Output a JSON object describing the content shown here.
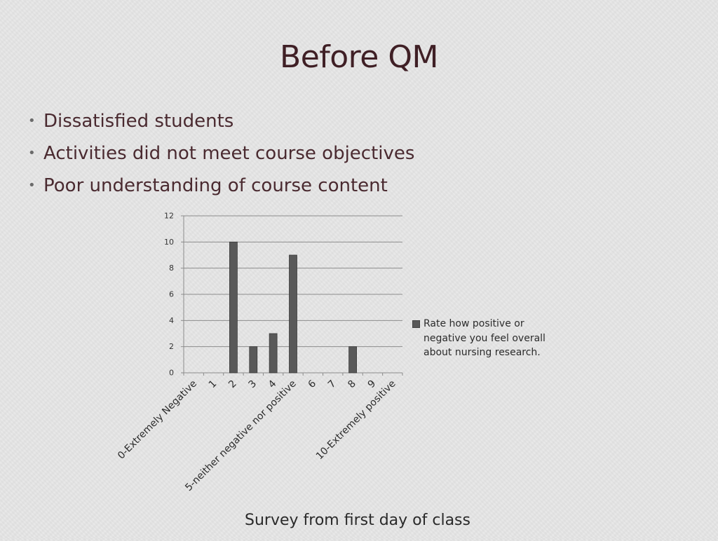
{
  "slide": {
    "title": "Before QM",
    "bullets": [
      "Dissatisfied students",
      "Activities did not meet course objectives",
      "Poor understanding of course content"
    ],
    "caption": "Survey from first day of class"
  },
  "chart_data": {
    "type": "bar",
    "categories": [
      "0-Extremely Negative",
      "1",
      "2",
      "3",
      "4",
      "5-neither negative nor positive",
      "6",
      "7",
      "8",
      "9",
      "10-Extremely positive"
    ],
    "series": [
      {
        "name": "Rate how positive or negative you feel overall about nursing research.",
        "values": [
          0,
          0,
          10,
          2,
          3,
          9,
          0,
          0,
          2,
          0,
          0
        ],
        "color": "#595959"
      }
    ],
    "ylim": [
      0,
      12
    ],
    "yticks": [
      0,
      2,
      4,
      6,
      8,
      10,
      12
    ],
    "grid": true,
    "legend_position": "right"
  }
}
